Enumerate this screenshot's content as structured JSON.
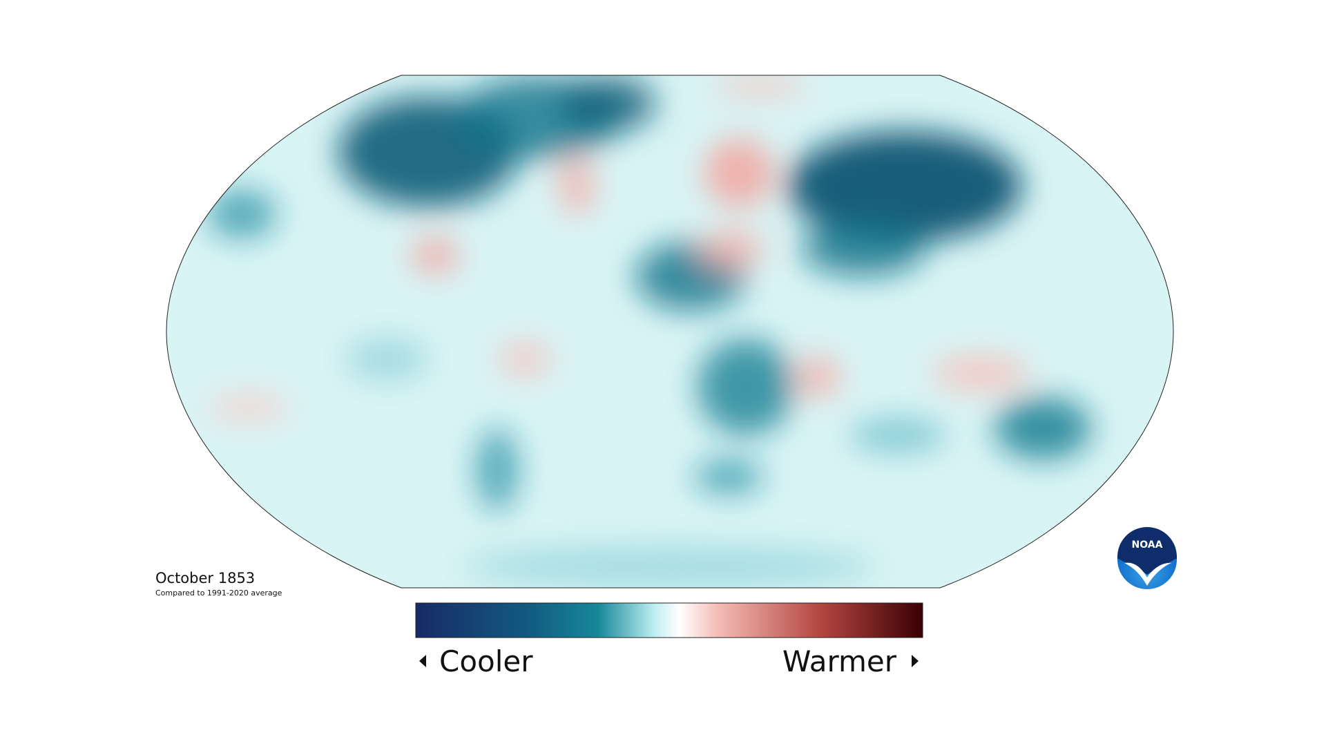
{
  "map": {
    "date": "October 1853",
    "baseline": "Compared to 1991-2020 average"
  },
  "legend": {
    "low": "Cooler",
    "high": "Warmer"
  },
  "logo": "NOAA"
}
